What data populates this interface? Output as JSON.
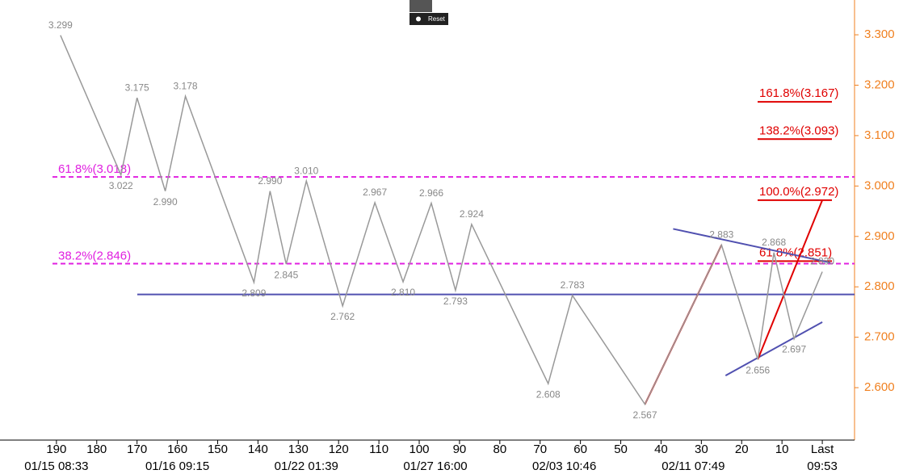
{
  "ui": {
    "reset": "Reset"
  },
  "chart_data": {
    "type": "line",
    "xlim": [
      204,
      -8
    ],
    "ylim": [
      2.496,
      3.369
    ],
    "xticks": [
      190,
      180,
      170,
      160,
      150,
      140,
      130,
      120,
      110,
      100,
      90,
      80,
      70,
      60,
      50,
      40,
      30,
      20,
      10,
      {
        "value": 0,
        "label": "Last"
      }
    ],
    "date_ticks": [
      {
        "value": 190,
        "label": "01/15 08:33"
      },
      {
        "value": 160,
        "label": "01/16 09:15"
      },
      {
        "value": 128,
        "label": "01/22 01:39"
      },
      {
        "value": 96,
        "label": "01/27 16:00"
      },
      {
        "value": 64,
        "label": "02/03 10:46"
      },
      {
        "value": 32,
        "label": "02/11 07:49"
      },
      {
        "value": 0,
        "label": "09:53"
      }
    ],
    "yticks": [
      {
        "value": 2.6,
        "label": "2.600"
      },
      {
        "value": 2.7,
        "label": "2.700"
      },
      {
        "value": 2.8,
        "label": "2.800"
      },
      {
        "value": 2.9,
        "label": "2.900"
      },
      {
        "value": 3.0,
        "label": "3.000"
      },
      {
        "value": 3.1,
        "label": "3.100"
      },
      {
        "value": 3.2,
        "label": "3.200"
      },
      {
        "value": 3.3,
        "label": "3.300"
      }
    ],
    "axis_color": "#f08020",
    "series": [
      {
        "color": "#999999",
        "x": [
          189,
          174,
          170,
          163,
          158,
          141,
          137,
          133,
          128,
          119,
          111,
          104,
          97,
          91,
          87,
          68,
          62,
          44,
          25,
          16,
          12,
          7,
          0
        ],
        "values": [
          3.299,
          3.022,
          3.175,
          2.99,
          3.178,
          2.809,
          2.99,
          2.845,
          3.01,
          2.762,
          2.967,
          2.81,
          2.966,
          2.793,
          2.924,
          2.608,
          2.783,
          2.567,
          2.883,
          2.656,
          2.868,
          2.697,
          2.83
        ],
        "value_labels": [
          "3.299",
          "3.022",
          "3.175",
          "2.990",
          "3.178",
          "2.809",
          "2.990",
          "2.845",
          "3.010",
          "2.762",
          "2.967",
          "2.810",
          "2.966",
          "2.793",
          "2.924",
          "2.608",
          "2.783",
          "2.567",
          "2.883",
          "2.656",
          "2.868",
          "2.697",
          "2.830"
        ]
      }
    ],
    "retracements": {
      "color": "#e020e0",
      "levels": [
        {
          "label": "61.8%(3.018)",
          "value": 3.018
        },
        {
          "label": "38.2%(2.846)",
          "value": 2.846
        }
      ]
    },
    "projections": {
      "color": "#e00000",
      "levels": [
        {
          "label": "161.8%(3.167)",
          "value": 3.167
        },
        {
          "label": "138.2%(3.093)",
          "value": 3.093
        },
        {
          "label": "100.0%(2.972)",
          "value": 2.972
        },
        {
          "label": "61.8%(2.851)",
          "value": 2.851
        }
      ]
    },
    "support_line": {
      "color": "#5050b0",
      "value": 2.785
    },
    "trendlines": [
      {
        "color": "#5050b0",
        "x": [
          37,
          -2
        ],
        "values": [
          2.915,
          2.848
        ]
      },
      {
        "color": "#5050b0",
        "x": [
          24,
          0
        ],
        "values": [
          2.624,
          2.73
        ]
      },
      {
        "color": "#e00000",
        "x": [
          44,
          25
        ],
        "values": [
          2.567,
          2.883
        ]
      },
      {
        "color": "#e00000",
        "x": [
          16,
          0
        ],
        "values": [
          2.656,
          2.972
        ]
      }
    ]
  }
}
